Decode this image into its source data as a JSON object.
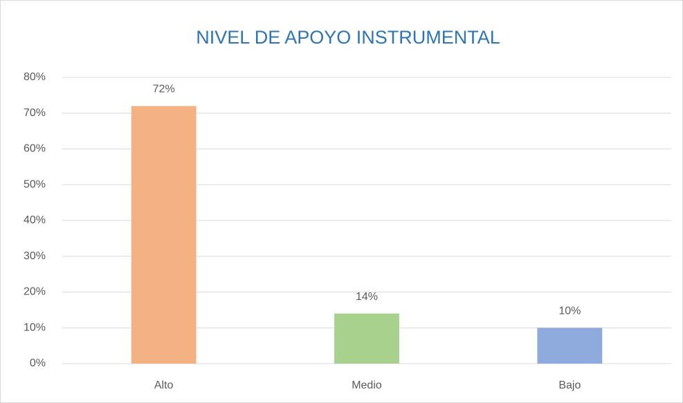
{
  "chart_data": {
    "type": "bar",
    "title": "NIVEL DE APOYO INSTRUMENTAL",
    "categories": [
      "Alto",
      "Medio",
      "Bajo"
    ],
    "values": [
      72,
      14,
      10
    ],
    "value_labels": [
      "72%",
      "14%",
      "10%"
    ],
    "colors": [
      "#f4b183",
      "#a9d18e",
      "#8faadc"
    ],
    "ylim": [
      0,
      80
    ],
    "yticks": [
      {
        "value": 0,
        "label": "0%"
      },
      {
        "value": 10,
        "label": "10%"
      },
      {
        "value": 20,
        "label": "20%"
      },
      {
        "value": 30,
        "label": "30%"
      },
      {
        "value": 40,
        "label": "40%"
      },
      {
        "value": 50,
        "label": "50%"
      },
      {
        "value": 60,
        "label": "60%"
      },
      {
        "value": 70,
        "label": "70%"
      },
      {
        "value": 80,
        "label": "80%"
      }
    ],
    "grid": true
  }
}
